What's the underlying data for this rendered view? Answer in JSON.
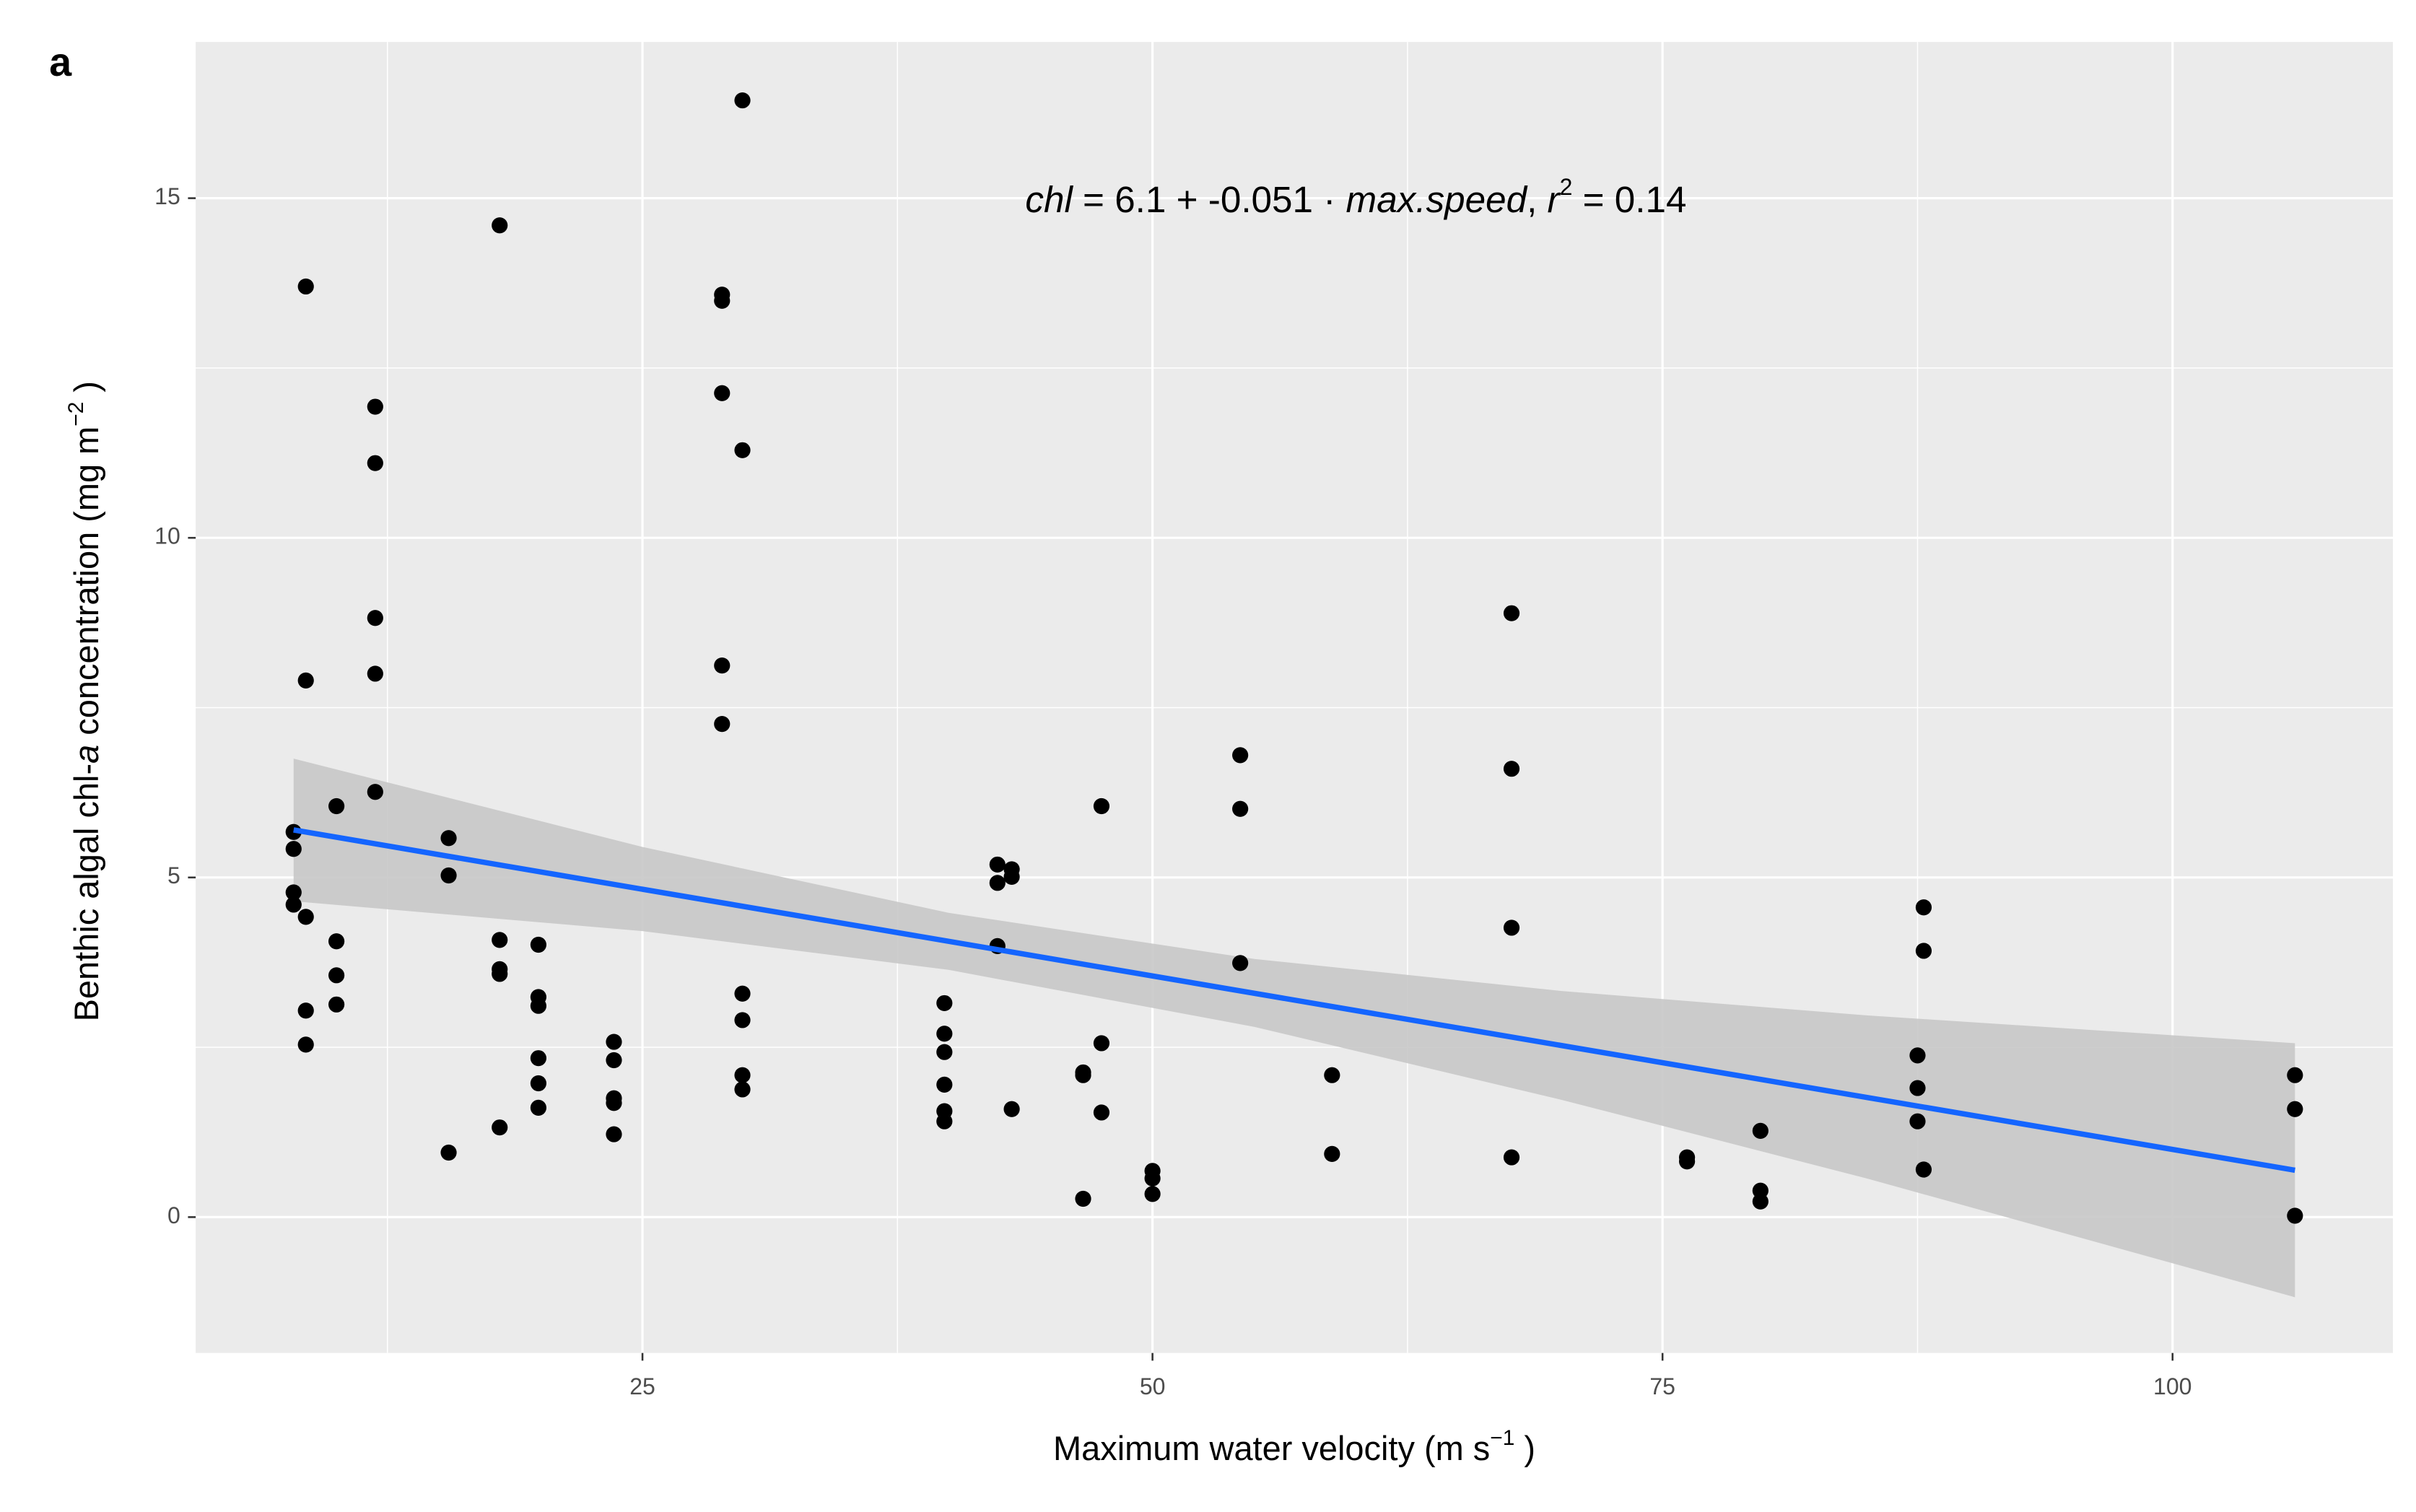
{
  "chart_data": {
    "type": "scatter",
    "panel_label": "a",
    "annotation": [
      "chl",
      " = 6.1 + -0.051 · ",
      "max.speed",
      ",  ",
      "r",
      "2",
      " = 0.14"
    ],
    "xlabel": [
      "Maximum water velocity (m s",
      "−1",
      " )"
    ],
    "ylabel": [
      "Benthic algal chl-",
      "a",
      "  concentration (mg m",
      "−2",
      " )"
    ],
    "xlim": [
      3.1,
      110.8
    ],
    "ylim": [
      -2.0,
      17.3
    ],
    "xticks": [
      25,
      50,
      75,
      100
    ],
    "yticks": [
      0,
      5,
      10,
      15
    ],
    "xminor": [
      12.5,
      37.5,
      62.5,
      87.5
    ],
    "yminor": [
      2.5,
      7.5,
      12.5
    ],
    "grid": true,
    "background": "#ebebeb",
    "color": "#000000",
    "x": [
      7.9,
      7.9,
      7.9,
      7.9,
      8.5,
      8.5,
      8.5,
      8.5,
      8.5,
      10.0,
      10.0,
      10.0,
      10.0,
      11.9,
      11.9,
      11.9,
      11.9,
      11.9,
      15.5,
      15.5,
      15.5,
      18.0,
      18.0,
      18.0,
      18.0,
      18.0,
      19.9,
      19.9,
      19.9,
      19.9,
      19.9,
      19.9,
      23.6,
      23.6,
      23.6,
      23.6,
      23.6,
      28.9,
      28.9,
      28.9,
      28.9,
      28.9,
      29.9,
      29.9,
      29.9,
      29.9,
      29.9,
      29.9,
      39.8,
      39.8,
      39.8,
      39.8,
      39.8,
      39.8,
      42.4,
      42.4,
      42.4,
      43.1,
      43.1,
      43.1,
      46.6,
      46.6,
      46.6,
      47.5,
      47.5,
      47.5,
      50.0,
      50.0,
      50.0,
      54.3,
      54.3,
      54.3,
      58.8,
      58.8,
      67.6,
      67.6,
      67.6,
      67.6,
      76.2,
      76.2,
      79.8,
      79.8,
      79.8,
      87.5,
      87.5,
      87.5,
      87.8,
      87.8,
      87.8,
      106.0,
      106.0,
      106.0
    ],
    "y": [
      5.67,
      5.42,
      4.78,
      4.6,
      13.7,
      7.9,
      4.42,
      3.04,
      2.54,
      6.05,
      4.06,
      3.56,
      3.13,
      11.93,
      11.1,
      8.82,
      8.0,
      6.26,
      5.58,
      5.03,
      0.95,
      14.6,
      4.08,
      3.65,
      3.58,
      1.32,
      4.01,
      3.24,
      3.11,
      2.34,
      1.97,
      1.61,
      2.58,
      2.31,
      1.75,
      1.68,
      1.22,
      13.58,
      13.49,
      12.13,
      8.12,
      7.26,
      16.44,
      11.29,
      3.29,
      2.9,
      2.09,
      1.88,
      3.15,
      2.7,
      2.43,
      1.95,
      1.56,
      1.41,
      5.19,
      4.92,
      3.99,
      5.12,
      5.01,
      1.59,
      2.13,
      2.09,
      0.27,
      6.05,
      2.56,
      1.54,
      0.68,
      0.57,
      0.34,
      6.8,
      6.01,
      3.74,
      2.09,
      0.93,
      8.89,
      6.6,
      4.26,
      0.88,
      0.88,
      0.82,
      1.27,
      0.39,
      0.23,
      2.38,
      1.9,
      1.41,
      4.56,
      3.92,
      0.7,
      2.09,
      1.59,
      0.02
    ],
    "fit": {
      "color": "#1465ff",
      "x": [
        7.9,
        106.0
      ],
      "y": [
        5.7,
        0.69
      ]
    },
    "ribbon": {
      "color": "#c8c8c8",
      "x": [
        7.9,
        25,
        40,
        55,
        70,
        85,
        106.0
      ],
      "upper": [
        6.75,
        5.45,
        4.48,
        3.8,
        3.33,
        2.97,
        2.56
      ],
      "lower": [
        4.65,
        4.21,
        3.64,
        2.8,
        1.73,
        0.57,
        -1.18
      ]
    }
  }
}
